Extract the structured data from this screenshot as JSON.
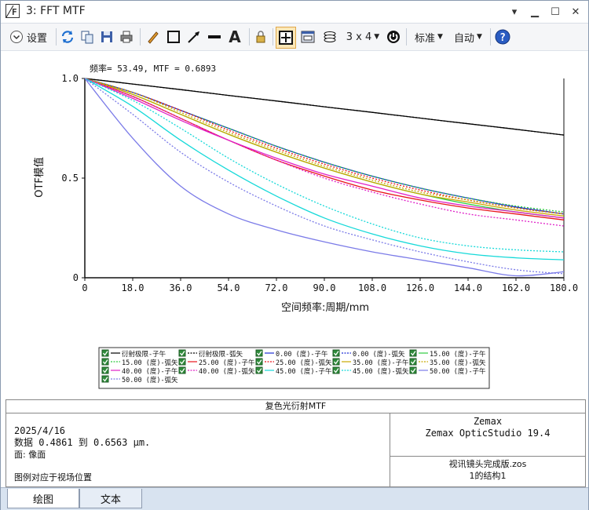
{
  "window": {
    "title": "3: FFT MTF"
  },
  "toolbar": {
    "settings_label": "设置",
    "layout_label": "3 x 4",
    "standard_label": "标准",
    "auto_label": "自动"
  },
  "plot": {
    "cursor_readout": "频率= 53.49, MTF = 0.6893"
  },
  "chart_data": {
    "type": "line",
    "title": "复色光衍射MTF",
    "xlabel": "空间频率:周期/mm",
    "ylabel": "OTF模值",
    "xlim": [
      0,
      180
    ],
    "ylim": [
      0,
      1
    ],
    "xticks": [
      "0",
      "18.0",
      "36.0",
      "54.0",
      "72.0",
      "90.0",
      "108.0",
      "126.0",
      "144.0",
      "162.0",
      "180.0"
    ],
    "yticks": [
      "0",
      "0.5",
      "1.0"
    ],
    "grid": false,
    "legend_position": "bottom",
    "series": [
      {
        "name": "衍射极限-子午",
        "color": "#000000",
        "dash": false,
        "x": [
          0,
          18,
          36,
          54,
          72,
          90,
          108,
          126,
          144,
          162,
          180
        ],
        "y": [
          1.0,
          0.972,
          0.944,
          0.915,
          0.887,
          0.858,
          0.83,
          0.801,
          0.773,
          0.745,
          0.716
        ]
      },
      {
        "name": "衍射极限-弧矢",
        "color": "#000000",
        "dash": true,
        "x": [
          0,
          18,
          36,
          54,
          72,
          90,
          108,
          126,
          144,
          162,
          180
        ],
        "y": [
          1.0,
          0.972,
          0.944,
          0.915,
          0.887,
          0.858,
          0.83,
          0.801,
          0.773,
          0.745,
          0.716
        ]
      },
      {
        "name": "0.00 (度)-子午",
        "color": "#1f2fd6",
        "dash": false,
        "x": [
          0,
          18,
          36,
          54,
          72,
          90,
          108,
          126,
          144,
          162,
          180
        ],
        "y": [
          1.0,
          0.93,
          0.84,
          0.75,
          0.66,
          0.58,
          0.51,
          0.45,
          0.4,
          0.355,
          0.32
        ]
      },
      {
        "name": "0.00 (度)-弧矢",
        "color": "#1f2fd6",
        "dash": true,
        "x": [
          0,
          18,
          36,
          54,
          72,
          90,
          108,
          126,
          144,
          162,
          180
        ],
        "y": [
          1.0,
          0.93,
          0.84,
          0.75,
          0.66,
          0.58,
          0.51,
          0.45,
          0.4,
          0.355,
          0.32
        ]
      },
      {
        "name": "15.00 (度)-子午",
        "color": "#2ecc40",
        "dash": false,
        "x": [
          0,
          18,
          36,
          54,
          72,
          90,
          108,
          126,
          144,
          162,
          180
        ],
        "y": [
          1.0,
          0.92,
          0.82,
          0.72,
          0.63,
          0.55,
          0.48,
          0.42,
          0.37,
          0.33,
          0.3
        ]
      },
      {
        "name": "15.00 (度)-弧矢",
        "color": "#2ecc40",
        "dash": true,
        "x": [
          0,
          18,
          36,
          54,
          72,
          90,
          108,
          126,
          144,
          162,
          180
        ],
        "y": [
          1.0,
          0.93,
          0.84,
          0.75,
          0.66,
          0.58,
          0.51,
          0.45,
          0.4,
          0.36,
          0.33
        ]
      },
      {
        "name": "25.00 (度)-子午",
        "color": "#e8141c",
        "dash": false,
        "x": [
          0,
          18,
          36,
          54,
          72,
          90,
          108,
          126,
          144,
          162,
          180
        ],
        "y": [
          1.0,
          0.91,
          0.8,
          0.69,
          0.59,
          0.51,
          0.44,
          0.39,
          0.35,
          0.32,
          0.29
        ]
      },
      {
        "name": "25.00 (度)-弧矢",
        "color": "#e8141c",
        "dash": true,
        "x": [
          0,
          18,
          36,
          54,
          72,
          90,
          108,
          126,
          144,
          162,
          180
        ],
        "y": [
          1.0,
          0.93,
          0.84,
          0.74,
          0.65,
          0.57,
          0.5,
          0.44,
          0.39,
          0.35,
          0.32
        ]
      },
      {
        "name": "35.00 (度)-子午",
        "color": "#c8a800",
        "dash": false,
        "x": [
          0,
          18,
          36,
          54,
          72,
          90,
          108,
          126,
          144,
          162,
          180
        ],
        "y": [
          1.0,
          0.92,
          0.82,
          0.72,
          0.63,
          0.55,
          0.48,
          0.42,
          0.38,
          0.34,
          0.31
        ]
      },
      {
        "name": "35.00 (度)-弧矢",
        "color": "#c8a800",
        "dash": true,
        "x": [
          0,
          18,
          36,
          54,
          72,
          90,
          108,
          126,
          144,
          162,
          180
        ],
        "y": [
          1.0,
          0.93,
          0.83,
          0.73,
          0.64,
          0.56,
          0.49,
          0.43,
          0.39,
          0.35,
          0.32
        ]
      },
      {
        "name": "40.00 (度)-子午",
        "color": "#e020c8",
        "dash": false,
        "x": [
          0,
          18,
          36,
          54,
          72,
          90,
          108,
          126,
          144,
          162,
          180
        ],
        "y": [
          1.0,
          0.9,
          0.79,
          0.69,
          0.6,
          0.52,
          0.46,
          0.4,
          0.36,
          0.33,
          0.3
        ]
      },
      {
        "name": "40.00 (度)-弧矢",
        "color": "#e020c8",
        "dash": true,
        "x": [
          0,
          18,
          36,
          54,
          72,
          90,
          108,
          126,
          144,
          162,
          180
        ],
        "y": [
          1.0,
          0.91,
          0.8,
          0.69,
          0.59,
          0.5,
          0.43,
          0.37,
          0.32,
          0.29,
          0.26
        ]
      },
      {
        "name": "45.00 (度)-子午",
        "color": "#16d9d9",
        "dash": false,
        "x": [
          0,
          18,
          36,
          54,
          72,
          90,
          108,
          126,
          144,
          162,
          180
        ],
        "y": [
          1.0,
          0.86,
          0.69,
          0.54,
          0.41,
          0.3,
          0.22,
          0.16,
          0.12,
          0.1,
          0.09
        ]
      },
      {
        "name": "45.00 (度)-弧矢",
        "color": "#16d9d9",
        "dash": true,
        "x": [
          0,
          18,
          36,
          54,
          72,
          90,
          108,
          126,
          144,
          162,
          180
        ],
        "y": [
          1.0,
          0.89,
          0.75,
          0.6,
          0.47,
          0.36,
          0.27,
          0.2,
          0.16,
          0.14,
          0.13
        ]
      },
      {
        "name": "50.00 (度)-子午",
        "color": "#7b7be8",
        "dash": false,
        "x": [
          0,
          18,
          36,
          54,
          72,
          90,
          108,
          126,
          144,
          162,
          180
        ],
        "y": [
          1.0,
          0.7,
          0.46,
          0.32,
          0.24,
          0.18,
          0.13,
          0.09,
          0.05,
          0.01,
          0.03
        ]
      },
      {
        "name": "50.00 (度)-弧矢",
        "color": "#7b7be8",
        "dash": true,
        "x": [
          0,
          18,
          36,
          54,
          72,
          90,
          108,
          126,
          144,
          162,
          180
        ],
        "y": [
          1.0,
          0.82,
          0.63,
          0.48,
          0.36,
          0.26,
          0.19,
          0.13,
          0.08,
          0.04,
          0.02
        ]
      }
    ]
  },
  "info": {
    "header": "复色光衍射MTF",
    "date": "2025/4/16",
    "data_range": "数据 0.4861 到 0.6563 μm.",
    "surface": "面: 像面",
    "legend_note": "图例对应于视场位置",
    "vendor": "Zemax",
    "product": "Zemax OpticStudio 19.4",
    "file": "视讯镜头完成版.zos",
    "config": "1的结构1"
  },
  "tabs": [
    {
      "label": "绘图"
    },
    {
      "label": "文本"
    }
  ]
}
